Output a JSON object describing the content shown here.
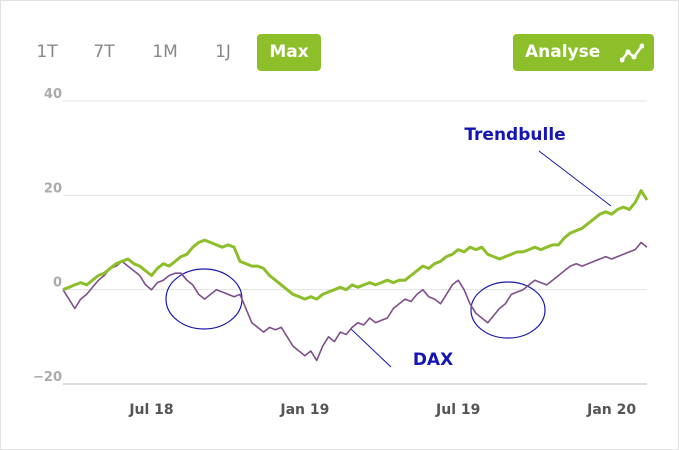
{
  "toolbar": {
    "ranges": [
      "1T",
      "7T",
      "1M",
      "1J",
      "Max"
    ],
    "active": 4,
    "analyse": "Analyse"
  },
  "chart_data": {
    "type": "line",
    "categories": [
      null,
      null,
      null,
      null,
      null,
      null,
      null,
      null,
      null,
      null,
      null,
      null,
      null,
      null,
      null,
      "Jul 18",
      null,
      null,
      null,
      null,
      null,
      null,
      null,
      null,
      null,
      null,
      null,
      null,
      null,
      null,
      null,
      null,
      null,
      null,
      null,
      null,
      null,
      null,
      null,
      null,
      null,
      "Jan 19",
      null,
      null,
      null,
      null,
      null,
      null,
      null,
      null,
      null,
      null,
      null,
      null,
      null,
      null,
      null,
      null,
      null,
      null,
      null,
      null,
      null,
      null,
      null,
      null,
      null,
      "Jul 19",
      null,
      null,
      null,
      null,
      null,
      null,
      null,
      null,
      null,
      null,
      null,
      null,
      null,
      null,
      null,
      null,
      null,
      null,
      null,
      null,
      null,
      null,
      null,
      null,
      null,
      "Jan 20",
      null,
      null,
      null,
      null,
      null,
      null
    ],
    "series": [
      {
        "name": "Trendbulle",
        "color": "#8dbf2b",
        "values": [
          0,
          0.5,
          1,
          1.5,
          1,
          2,
          3,
          3.5,
          4.5,
          5.5,
          6,
          6.5,
          5.5,
          5,
          4,
          3,
          4.5,
          5.5,
          5,
          6,
          7,
          7.5,
          9,
          10,
          10.5,
          10,
          9.5,
          9,
          9.5,
          9,
          6,
          5.5,
          5,
          5,
          4.5,
          3,
          2,
          1,
          0,
          -1,
          -1.5,
          -2,
          -1.5,
          -2,
          -1,
          -0.5,
          0,
          0.5,
          0,
          1,
          0.5,
          1,
          1.5,
          1,
          1.5,
          2,
          1.5,
          2,
          2,
          3,
          4,
          5,
          4.5,
          5.5,
          6,
          7,
          7.5,
          8.5,
          8,
          9,
          8.5,
          9,
          7.5,
          7,
          6.5,
          7,
          7.5,
          8,
          8,
          8.5,
          9,
          8.5,
          9,
          9.5,
          9.5,
          11,
          12,
          12.5,
          13,
          14,
          15,
          16,
          16.5,
          16,
          17,
          17.5,
          17,
          18.5,
          21,
          19
        ]
      },
      {
        "name": "DAX",
        "color": "#7e4f8a",
        "values": [
          0,
          -2,
          -4,
          -2,
          -1,
          0.5,
          2,
          3,
          4.5,
          5,
          6,
          5,
          4,
          3,
          1,
          0,
          1.5,
          2,
          3,
          3.5,
          3.5,
          2,
          1,
          -1,
          -2,
          -1,
          0,
          -0.5,
          -1,
          -1.5,
          -1,
          -4,
          -7,
          -8,
          -9,
          -8,
          -8.5,
          -8,
          -10,
          -12,
          -13,
          -14,
          -13,
          -15,
          -12,
          -10,
          -11,
          -9,
          -9.5,
          -8,
          -7,
          -7.5,
          -6,
          -7,
          -6.5,
          -6,
          -4,
          -3,
          -2,
          -2.5,
          -1,
          0,
          -1.5,
          -2,
          -3,
          -1,
          1,
          2,
          0,
          -3,
          -5,
          -6,
          -7,
          -5.5,
          -4,
          -3,
          -1,
          -0.5,
          0,
          1,
          2,
          1.5,
          1,
          2,
          3,
          4,
          5,
          5.5,
          5,
          5.5,
          6,
          6.5,
          7,
          6.5,
          7,
          7.5,
          8,
          8.5,
          10,
          9
        ]
      }
    ],
    "ylim": [
      -20,
      40
    ],
    "yticks": [
      {
        "value": -20,
        "label": "−20"
      },
      0,
      20,
      40
    ],
    "grid": true,
    "annotations": [
      "Trendbulle",
      "DAX"
    ]
  }
}
